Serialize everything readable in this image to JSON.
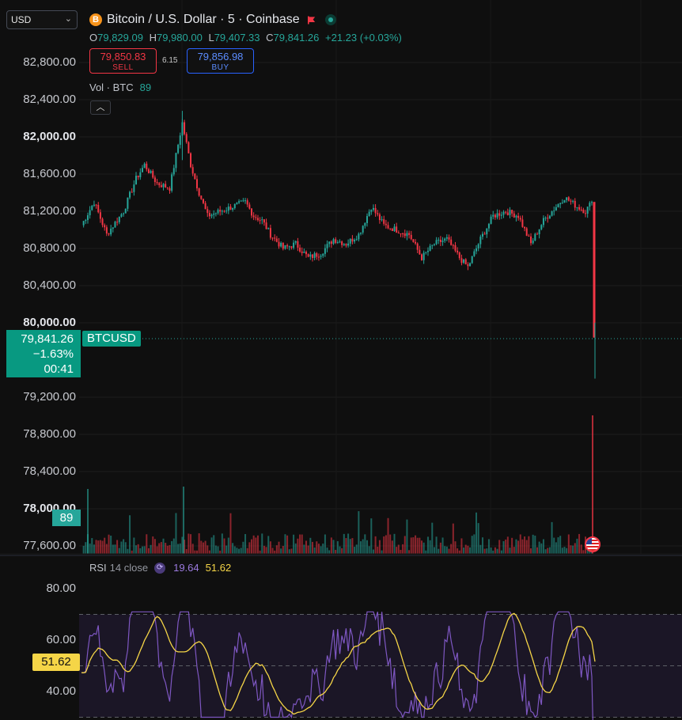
{
  "header": {
    "symbol_select": "USD",
    "symbol_icon": "B",
    "title": "Bitcoin / U.S. Dollar · 5 · Coinbase",
    "ohlc": {
      "o_label": "O",
      "o": "79,829.09",
      "h_label": "H",
      "h": "79,980.00",
      "l_label": "L",
      "l": "79,407.33",
      "c_label": "C",
      "c": "79,841.26",
      "change": "+21.23 (+0.03%)"
    }
  },
  "trade": {
    "sell_price": "79,850.83",
    "sell_label": "SELL",
    "spread": "6.15",
    "buy_price": "79,856.98",
    "buy_label": "BUY"
  },
  "volume": {
    "label": "Vol · BTC",
    "value": "89",
    "badge": "89"
  },
  "price_axis": {
    "ticks": [
      "82,800.00",
      "82,400.00",
      "82,000.00",
      "81,600.00",
      "81,200.00",
      "80,800.00",
      "80,400.00",
      "80,000.00",
      "79,200.00",
      "78,800.00",
      "78,400.00",
      "78,000.00",
      "77,600.00"
    ],
    "bold_ticks": [
      "82,000.00",
      "80,000.00",
      "78,000.00"
    ]
  },
  "last_price": {
    "price": "79,841.26",
    "change": "−1.63%",
    "countdown": "00:41",
    "symbol": "BTCUSD"
  },
  "rsi": {
    "name": "RSI",
    "params": "14 close",
    "rsi_value": "19.64",
    "ma_value": "51.62",
    "badge": "51.62",
    "ticks": [
      "80.00",
      "60.00",
      "40.00"
    ]
  },
  "colors": {
    "up": "#26a69a",
    "down": "#f23645",
    "rsi_line": "#7e57c2",
    "rsi_ma": "#f5d547",
    "bg": "#0f0f0f"
  },
  "chart_data": [
    {
      "type": "candlestick",
      "title": "Bitcoin / U.S. Dollar · 5 · Coinbase",
      "ylim": [
        77600,
        82800
      ],
      "y_ticks": [
        77600,
        78000,
        78400,
        78800,
        79200,
        80000,
        80400,
        80800,
        81200,
        81600,
        82000,
        82400,
        82800
      ],
      "series_anchors": [
        {
          "i": 0,
          "c": 81050
        },
        {
          "i": 6,
          "c": 81300
        },
        {
          "i": 12,
          "c": 80950
        },
        {
          "i": 20,
          "c": 81200
        },
        {
          "i": 26,
          "c": 81550
        },
        {
          "i": 30,
          "c": 81700
        },
        {
          "i": 36,
          "c": 81500
        },
        {
          "i": 42,
          "c": 81450
        },
        {
          "i": 48,
          "c": 82150
        },
        {
          "i": 52,
          "c": 81700
        },
        {
          "i": 56,
          "c": 81400
        },
        {
          "i": 60,
          "c": 81150
        },
        {
          "i": 66,
          "c": 81200
        },
        {
          "i": 72,
          "c": 81250
        },
        {
          "i": 78,
          "c": 81300
        },
        {
          "i": 82,
          "c": 81150
        },
        {
          "i": 86,
          "c": 81100
        },
        {
          "i": 90,
          "c": 80950
        },
        {
          "i": 96,
          "c": 80800
        },
        {
          "i": 102,
          "c": 80850
        },
        {
          "i": 108,
          "c": 80700
        },
        {
          "i": 114,
          "c": 80750
        },
        {
          "i": 120,
          "c": 80900
        },
        {
          "i": 126,
          "c": 80850
        },
        {
          "i": 132,
          "c": 80950
        },
        {
          "i": 138,
          "c": 81250
        },
        {
          "i": 144,
          "c": 81050
        },
        {
          "i": 150,
          "c": 81000
        },
        {
          "i": 156,
          "c": 80950
        },
        {
          "i": 162,
          "c": 80700
        },
        {
          "i": 168,
          "c": 80850
        },
        {
          "i": 174,
          "c": 80900
        },
        {
          "i": 180,
          "c": 80700
        },
        {
          "i": 184,
          "c": 80600
        },
        {
          "i": 190,
          "c": 80900
        },
        {
          "i": 196,
          "c": 81150
        },
        {
          "i": 202,
          "c": 81200
        },
        {
          "i": 208,
          "c": 81150
        },
        {
          "i": 214,
          "c": 80850
        },
        {
          "i": 220,
          "c": 81100
        },
        {
          "i": 226,
          "c": 81250
        },
        {
          "i": 230,
          "c": 81350
        },
        {
          "i": 236,
          "c": 81250
        },
        {
          "i": 240,
          "c": 81200
        },
        {
          "i": 243,
          "c": 81300
        }
      ],
      "drop": {
        "open": 81300,
        "low_close": 79841.26,
        "wick_low": 79400
      }
    },
    {
      "type": "bar",
      "title": "Vol · BTC",
      "last_value": 89
    },
    {
      "type": "line",
      "title": "RSI 14 close",
      "ylim": [
        27,
        92
      ],
      "bands": [
        30,
        50,
        70
      ],
      "series": [
        {
          "name": "RSI",
          "last": 19.64
        },
        {
          "name": "MA",
          "last": 51.62
        }
      ]
    }
  ]
}
